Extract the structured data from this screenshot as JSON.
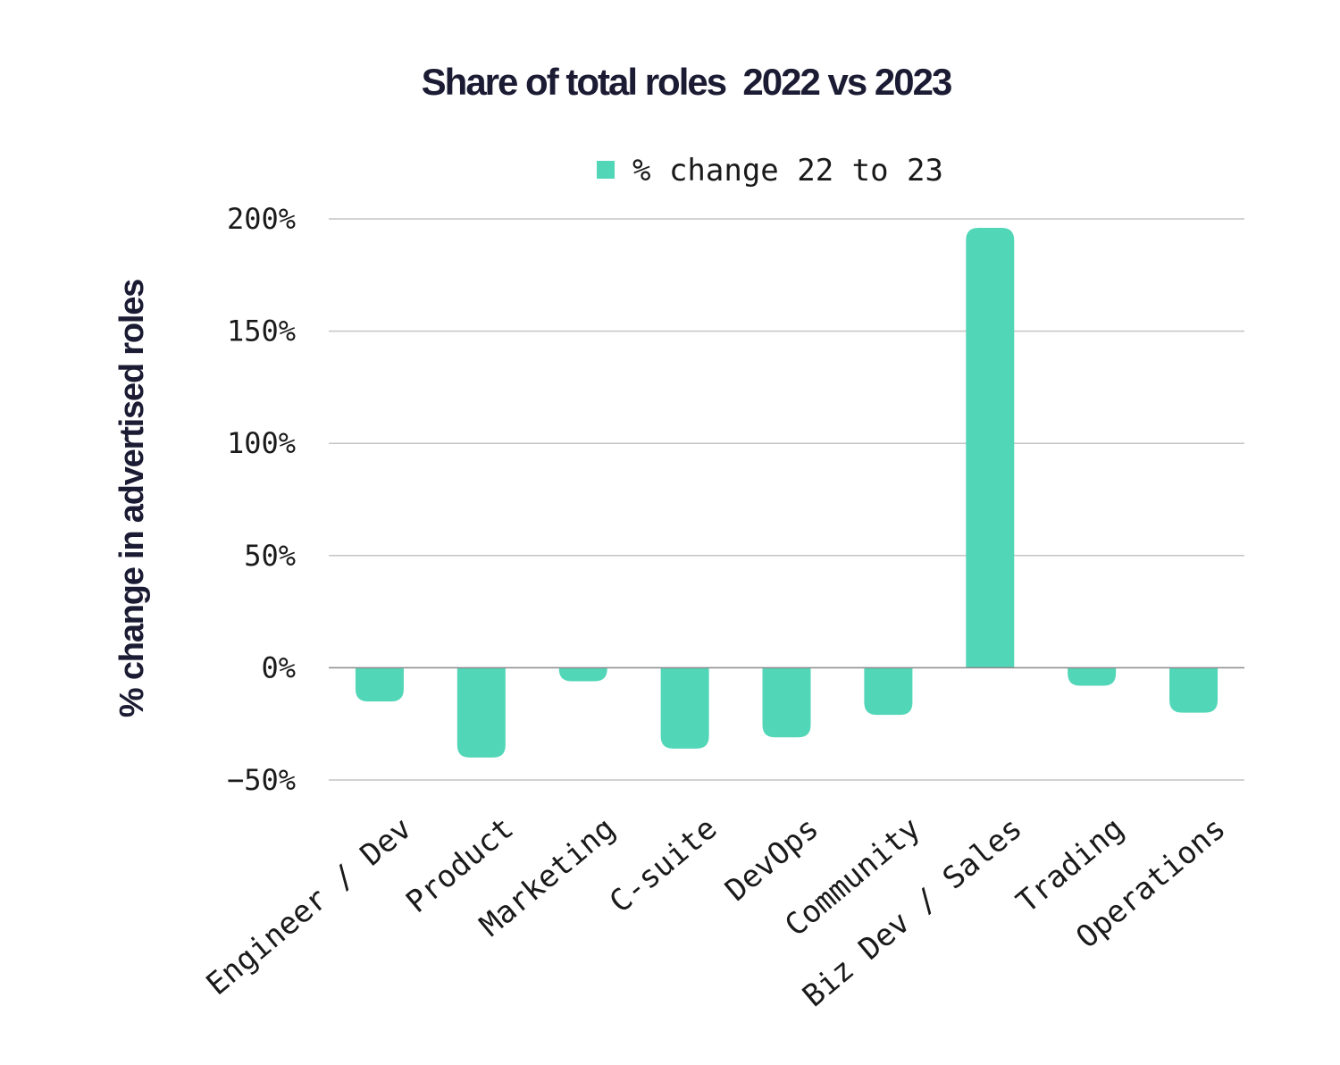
{
  "chart_data": {
    "type": "bar",
    "title": "Share of total roles  2022 vs 2023",
    "xlabel": "",
    "ylabel": "% change in advertised roles",
    "categories": [
      "Engineer / Dev",
      "Product",
      "Marketing",
      "C-suite",
      "DevOps",
      "Community",
      "Biz Dev / Sales",
      "Trading",
      "Operations"
    ],
    "series": [
      {
        "name": "% change 22 to 23",
        "color": "#52d6b8",
        "values": [
          -15,
          -40,
          -6,
          -36,
          -31,
          -21,
          196,
          -8,
          -20
        ]
      }
    ],
    "ylim": [
      -50,
      200
    ],
    "yticks": [
      200,
      150,
      100,
      50,
      0,
      -50
    ],
    "ytick_labels": [
      "200%",
      "150%",
      "100%",
      "50%",
      "0%",
      "−50%"
    ],
    "grid": true,
    "legend_position": "top-center"
  }
}
